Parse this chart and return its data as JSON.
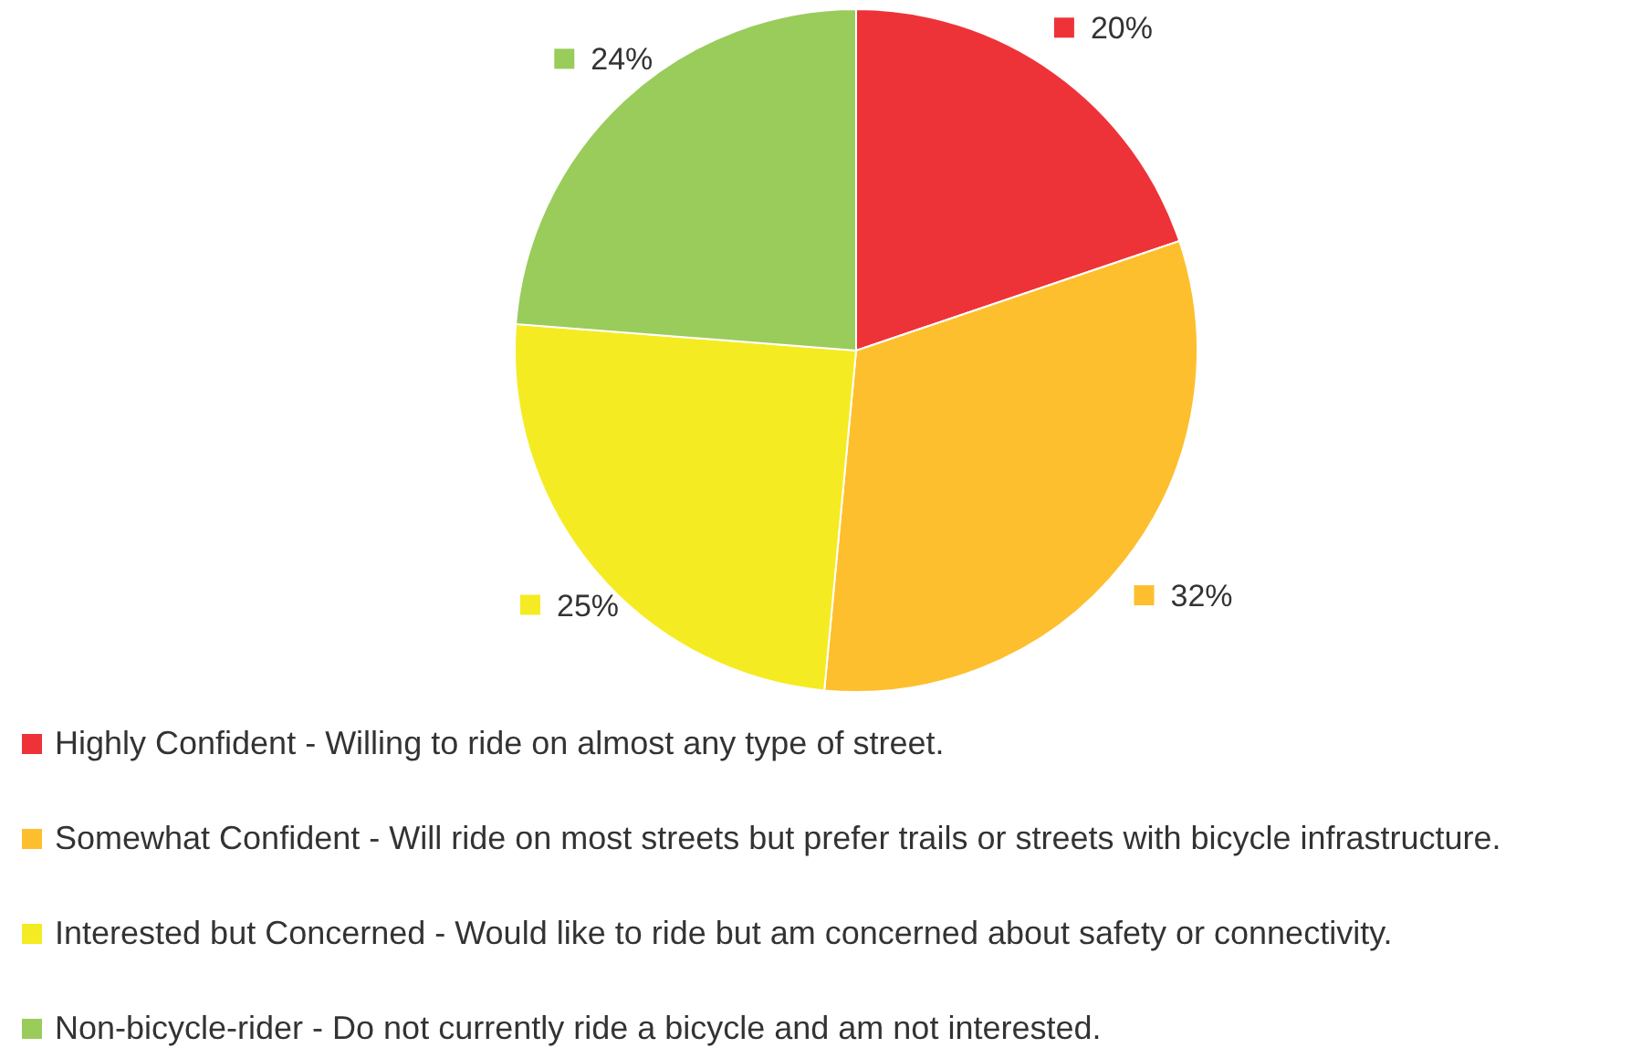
{
  "chart_data": {
    "type": "pie",
    "categories": [
      "Highly Confident - Willing to ride on almost any type of street.",
      "Somewhat Confident - Will ride on most streets but prefer trails or streets with bicycle infrastructure.",
      "Interested but Concerned - Would like to ride but am concerned about safety or connectivity.",
      "Non-bicycle-rider - Do not currently ride a bicycle and am not interested."
    ],
    "values": [
      20,
      32,
      25,
      24
    ],
    "value_labels": [
      "20%",
      "32%",
      "25%",
      "24%"
    ],
    "colors": [
      "#ee3338",
      "#fdbf2d",
      "#f5eb22",
      "#99cc5b"
    ],
    "legend": "bottom"
  }
}
